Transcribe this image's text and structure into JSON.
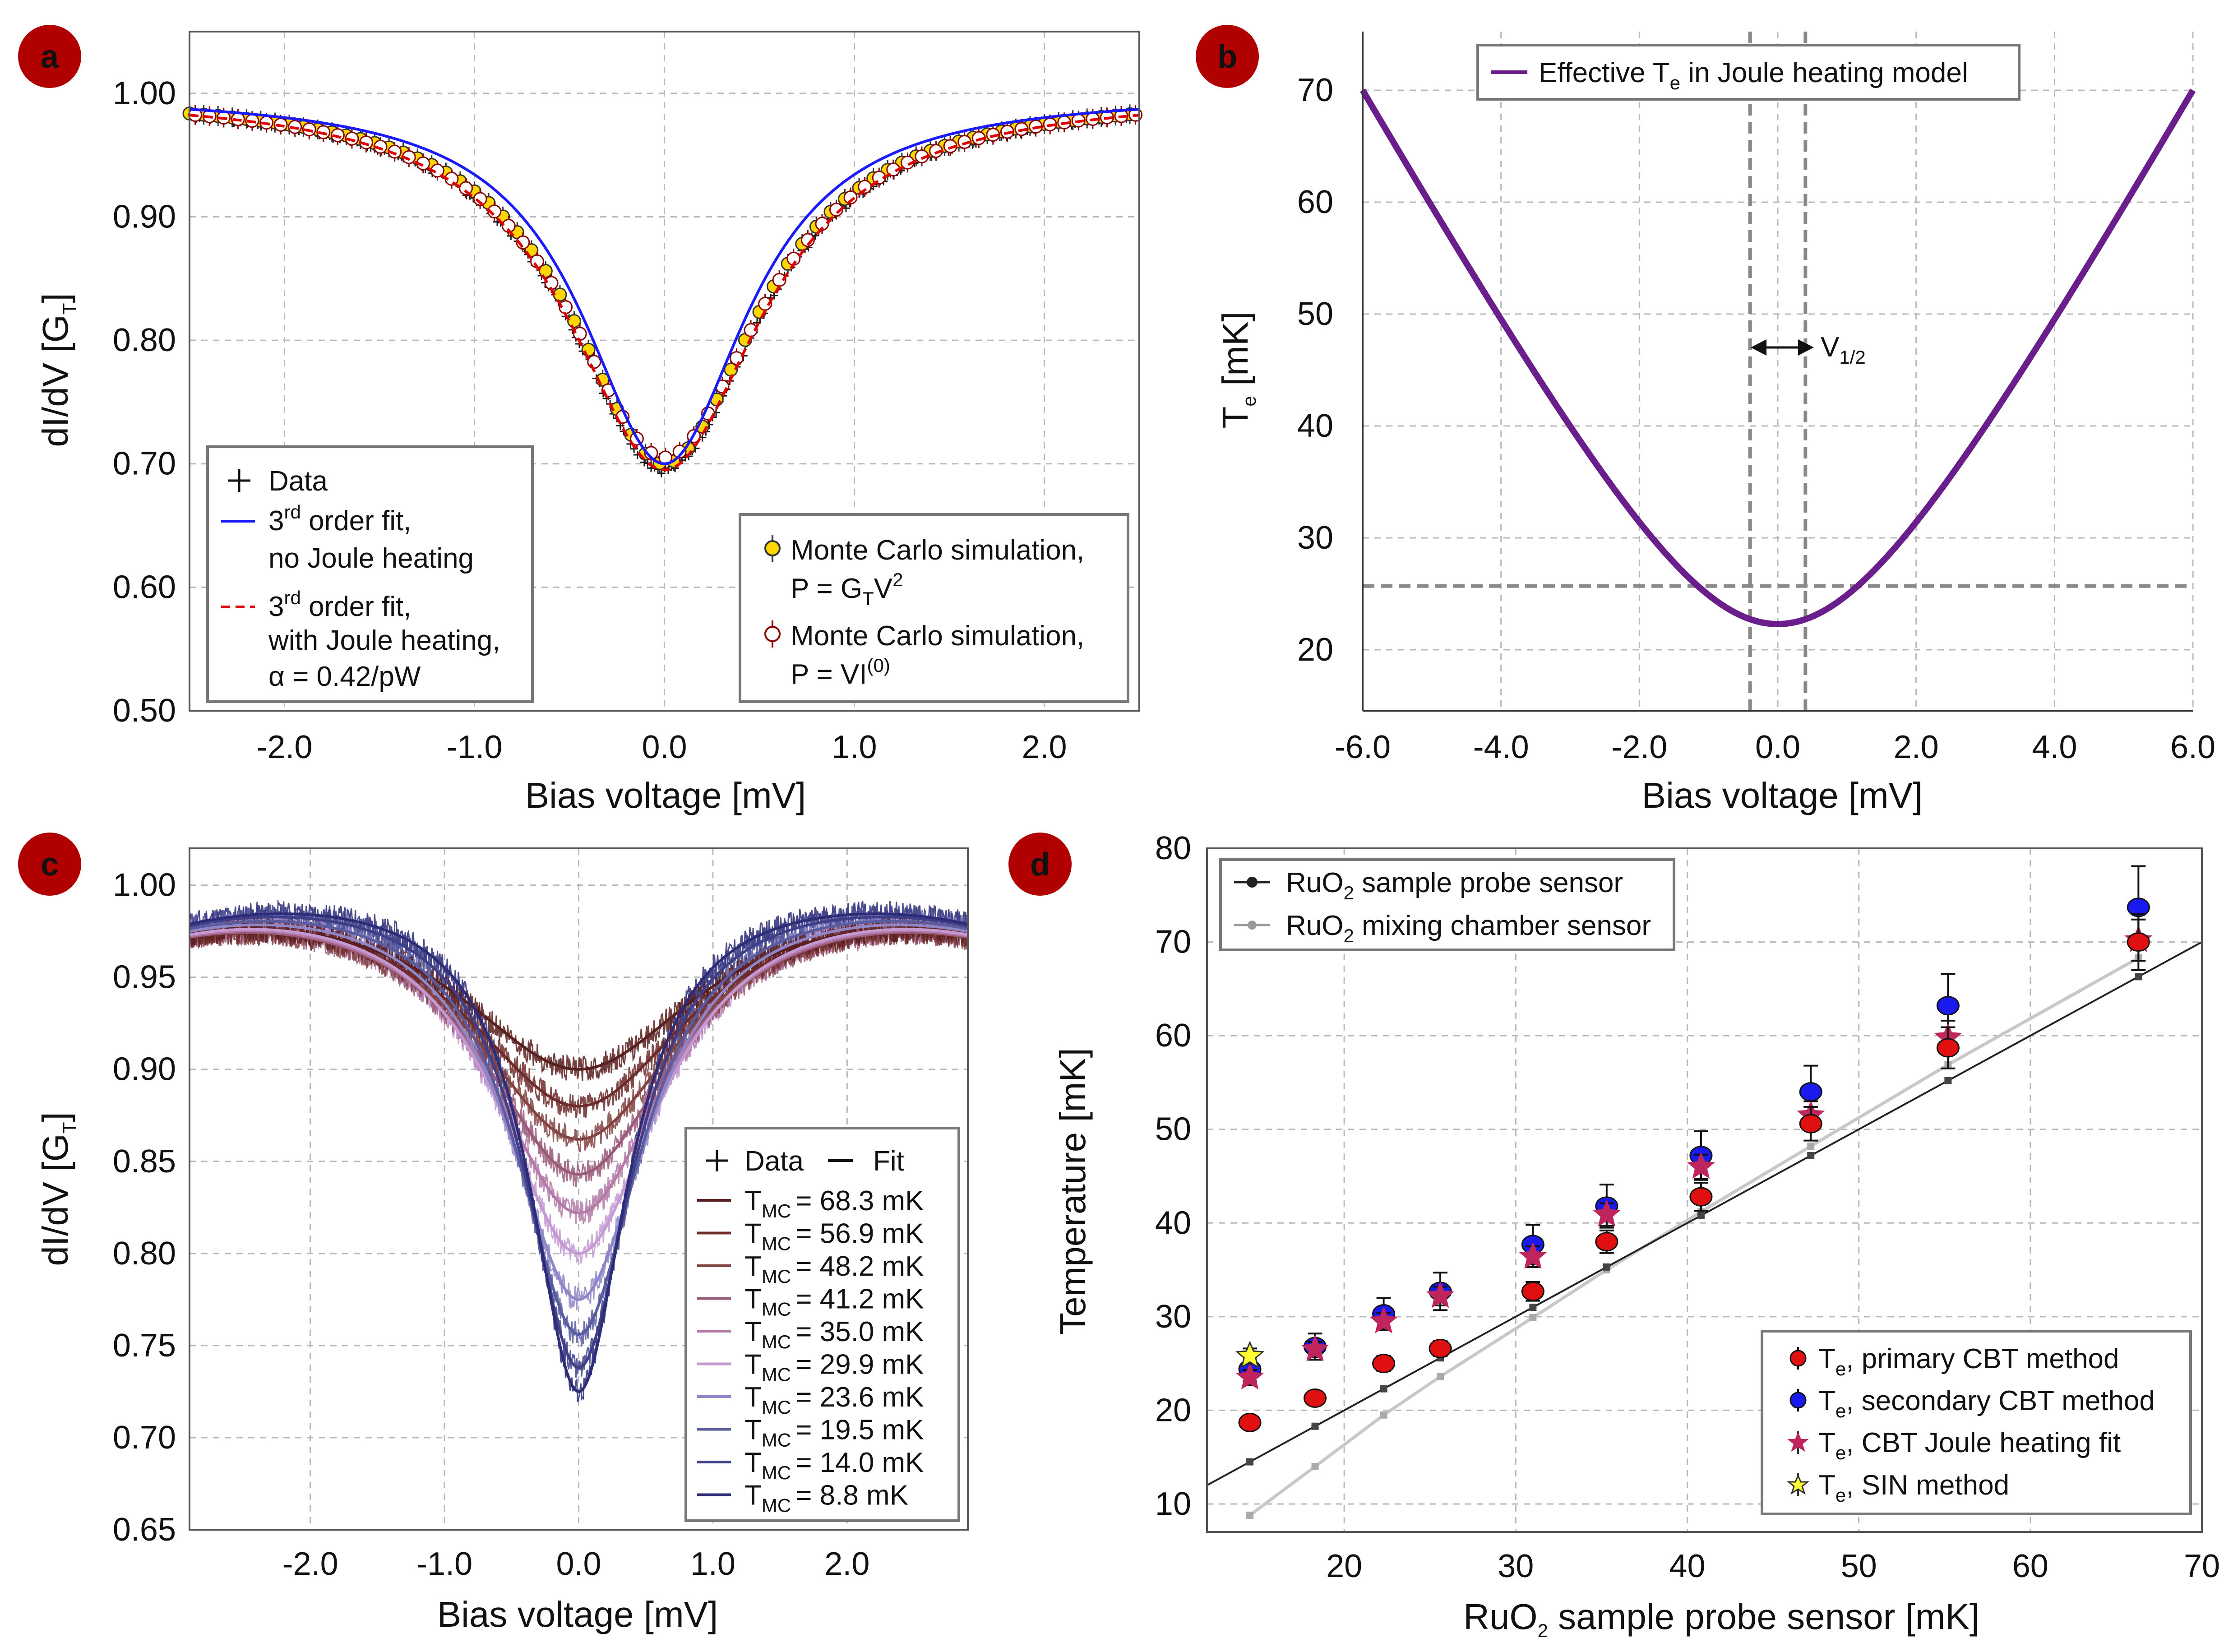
{
  "panels": {
    "a": {
      "label": "a",
      "xlabel": "Bias voltage [mV]",
      "ylabel": "dI/dV [G",
      "ylabel_sub": "T",
      "ylabel_end": "]",
      "xticks": [
        "-2.0",
        "-1.0",
        "0.0",
        "1.0",
        "2.0"
      ],
      "yticks": [
        "1.00",
        "0.90",
        "0.80",
        "0.70",
        "0.60",
        "0.50"
      ],
      "legend1": {
        "data": "Data",
        "fit1_a": "3",
        "fit1_sup": "rd",
        "fit1_b": " order fit,",
        "fit1_line2": "no Joule heating",
        "fit2_a": "3",
        "fit2_sup": "rd",
        "fit2_b": " order fit,",
        "fit2_line2": "with Joule heating,",
        "fit2_line3": "α = 0.42/pW"
      },
      "legend2": {
        "mc1_line1": "Monte Carlo simulation,",
        "mc1_a": "P = G",
        "mc1_sub": "T",
        "mc1_b": "V",
        "mc1_sup": "2",
        "mc2_line1": "Monte Carlo simulation,",
        "mc2_a": "P = VI",
        "mc2_sup": "(0)"
      }
    },
    "b": {
      "label": "b",
      "xlabel": "Bias voltage [mV]",
      "ylabel": "T",
      "ylabel_sub": "e",
      "ylabel_end": " [mK]",
      "xticks": [
        "-6.0",
        "-4.0",
        "-2.0",
        "0.0",
        "2.0",
        "4.0",
        "6.0"
      ],
      "yticks": [
        "70",
        "60",
        "50",
        "40",
        "30",
        "20"
      ],
      "legend": {
        "a": "Effective T",
        "sub": "e",
        "b": " in Joule heating model"
      },
      "annot": {
        "a": "V",
        "sub": "1/2"
      }
    },
    "c": {
      "label": "c",
      "xlabel": "Bias voltage [mV]",
      "ylabel": "dI/dV [G",
      "ylabel_sub": "T",
      "ylabel_end": "]",
      "xticks": [
        "-2.0",
        "-1.0",
        "0.0",
        "1.0",
        "2.0"
      ],
      "yticks": [
        "1.00",
        "0.95",
        "0.90",
        "0.85",
        "0.80",
        "0.75",
        "0.70",
        "0.65"
      ],
      "legend_head": {
        "data": "Data",
        "fit": "Fit"
      },
      "legend_prefix": "T",
      "legend_sub": "MC",
      "legend_items": [
        "= 68.3 mK",
        "= 56.9 mK",
        "= 48.2 mK",
        "= 41.2 mK",
        "= 35.0 mK",
        "= 29.9 mK",
        "= 23.6 mK",
        "= 19.5 mK",
        "= 14.0 mK",
        "= 8.8 mK"
      ]
    },
    "d": {
      "label": "d",
      "xlabel_a": "RuO",
      "xlabel_sub": "2",
      "xlabel_b": " sample probe sensor [mK]",
      "ylabel": "Temperature [mK]",
      "xticks": [
        "20",
        "30",
        "40",
        "50",
        "60",
        "70"
      ],
      "yticks": [
        "80",
        "70",
        "60",
        "50",
        "40",
        "30",
        "20",
        "10"
      ],
      "legend_top": [
        {
          "a": "RuO",
          "sub": "2",
          "b": " sample probe sensor"
        },
        {
          "a": "RuO",
          "sub": "2",
          "b": " mixing chamber sensor"
        }
      ],
      "legend_bottom": [
        {
          "a": "T",
          "sub": "e",
          "b": ", primary CBT method"
        },
        {
          "a": "T",
          "sub": "e",
          "b": ", secondary CBT method"
        },
        {
          "a": "T",
          "sub": "e",
          "b": ", CBT Joule heating fit"
        },
        {
          "a": "T",
          "sub": "e",
          "b": ", SIN method"
        }
      ]
    }
  },
  "colors": {
    "badge": "#b00000",
    "fit_no_joule": "#1a1aff",
    "fit_joule": "#e00000",
    "mc_gold": "#ffd700",
    "mc_red": "#8b0000",
    "te_curve": "#6a1e8c",
    "probe_line": "#222222",
    "mc_line": "#c8c8c8",
    "primary": "#e01010",
    "secondary": "#1a1aee",
    "joule": "#c0245c",
    "sin": "#ffff33"
  },
  "chart_data": [
    {
      "panel": "a",
      "type": "line",
      "title": "",
      "xlabel": "Bias voltage [mV]",
      "ylabel": "dI/dV [GT]",
      "xlim": [
        -2.5,
        2.5
      ],
      "ylim": [
        0.5,
        1.05
      ],
      "model": "lorentzian dip: y = 1 - depth / (1 + (x/w)^2)",
      "series": [
        {
          "name": "Data",
          "depth": 0.305,
          "width": 0.62,
          "floor": 0.695
        },
        {
          "name": "3rd order fit, no Joule heating",
          "depth": 0.3,
          "width": 0.53,
          "floor": 0.7
        },
        {
          "name": "3rd order fit, with Joule heating, α = 0.42/pW",
          "depth": 0.305,
          "width": 0.62,
          "floor": 0.695
        },
        {
          "name": "Monte Carlo simulation, P = GTV2",
          "depth": 0.3,
          "width": 0.6
        },
        {
          "name": "Monte Carlo simulation, P = VI(0)",
          "depth": 0.295,
          "width": 0.62
        }
      ]
    },
    {
      "panel": "b",
      "type": "line",
      "xlabel": "Bias voltage [mV]",
      "ylabel": "Te [mK]",
      "xlim": [
        -6,
        6
      ],
      "ylim": [
        15,
        75
      ],
      "series": [
        {
          "name": "Effective Te in Joule heating model",
          "T0": 22.3,
          "T6": 70.0,
          "shape": "sqrt(T0^2 + (k*V)^2)"
        }
      ],
      "hline": 25.7,
      "vlines": [
        -0.4,
        0.4
      ],
      "annotation": "V1/2"
    },
    {
      "panel": "c",
      "type": "line",
      "xlabel": "Bias voltage [mV]",
      "ylabel": "dI/dV [GT]",
      "xlim": [
        -2.9,
        2.9
      ],
      "ylim": [
        0.65,
        1.02
      ],
      "series": [
        {
          "name": "TMC = 68.3 mK",
          "min": 0.9,
          "width": 1.1,
          "color": "#5a1f1f"
        },
        {
          "name": "TMC = 56.9 mK",
          "min": 0.88,
          "width": 1.02,
          "color": "#6e2b2b"
        },
        {
          "name": "TMC = 48.2 mK",
          "min": 0.862,
          "width": 0.95,
          "color": "#844444"
        },
        {
          "name": "TMC = 41.2 mK",
          "min": 0.843,
          "width": 0.88,
          "color": "#9a5a7a"
        },
        {
          "name": "TMC = 35.0 mK",
          "min": 0.822,
          "width": 0.8,
          "color": "#b47aa8"
        },
        {
          "name": "TMC = 29.9 mK",
          "min": 0.8,
          "width": 0.73,
          "color": "#c49ad4"
        },
        {
          "name": "TMC = 23.6 mK",
          "min": 0.775,
          "width": 0.63,
          "color": "#8f86c8"
        },
        {
          "name": "TMC = 19.5 mK",
          "min": 0.756,
          "width": 0.56,
          "color": "#5a5ca0"
        },
        {
          "name": "TMC = 14.0 mK",
          "min": 0.738,
          "width": 0.49,
          "color": "#3e3f88"
        },
        {
          "name": "TMC = 8.8 mK",
          "min": 0.725,
          "width": 0.44,
          "color": "#2c2c78"
        }
      ]
    },
    {
      "panel": "d",
      "type": "scatter",
      "xlabel": "RuO2 sample probe sensor [mK]",
      "ylabel": "Temperature [mK]",
      "xlim": [
        12,
        70
      ],
      "ylim": [
        8,
        80
      ],
      "x": [
        14.5,
        18.3,
        22.3,
        25.6,
        31.0,
        35.3,
        40.8,
        47.2,
        55.2,
        66.3
      ],
      "series": [
        {
          "name": "RuO2 sample probe sensor",
          "kind": "line",
          "values": [
            14.5,
            18.3,
            22.3,
            25.6,
            31.0,
            35.3,
            40.8,
            47.2,
            55.2,
            66.3
          ]
        },
        {
          "name": "RuO2 mixing chamber sensor",
          "kind": "line",
          "values": [
            8.8,
            14.0,
            19.5,
            23.6,
            29.9,
            35.0,
            41.2,
            48.2,
            56.9,
            68.3
          ]
        },
        {
          "name": "Te, primary CBT method",
          "kind": "marker",
          "values": [
            18.7,
            21.3,
            25.0,
            26.6,
            32.7,
            38.0,
            42.8,
            50.6,
            58.7,
            70.0
          ],
          "err": [
            0.6,
            0.6,
            0.8,
            0.8,
            1.0,
            1.2,
            1.5,
            1.8,
            2.2,
            3.0
          ]
        },
        {
          "name": "Te, secondary CBT method",
          "kind": "marker",
          "values": [
            24.4,
            26.8,
            30.3,
            32.7,
            37.7,
            41.8,
            47.2,
            54.0,
            63.2,
            73.7
          ],
          "err": [
            1.3,
            1.4,
            1.7,
            2.0,
            2.1,
            2.3,
            2.6,
            2.8,
            3.4,
            4.4
          ]
        },
        {
          "name": "Te, CBT Joule heating fit",
          "kind": "marker",
          "values": [
            23.5,
            26.5,
            29.5,
            32.2,
            36.4,
            40.9,
            46.0,
            51.5,
            59.8,
            70.2
          ],
          "err": [
            0.8,
            0.8,
            0.9,
            1.0,
            1.1,
            1.2,
            1.3,
            1.5,
            1.8,
            2.2
          ]
        },
        {
          "name": "Te, SIN method",
          "kind": "marker",
          "values": [
            25.8,
            null,
            null,
            null,
            null,
            null,
            null,
            null,
            null,
            null
          ],
          "err": [
            0.8
          ]
        }
      ]
    }
  ]
}
